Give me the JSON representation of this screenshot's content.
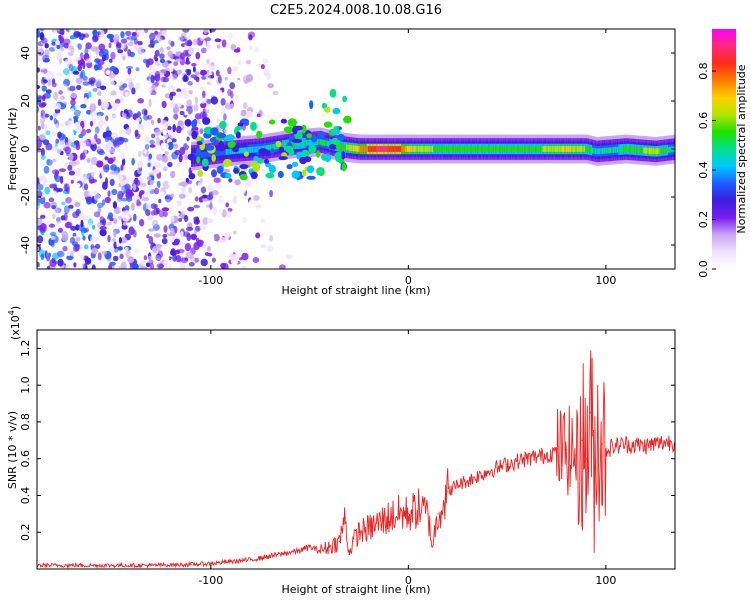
{
  "title": "C2E5.2024.008.10.08.G16",
  "colors": {
    "snr_line": "#ee2222",
    "colormap": [
      "#ffffff",
      "#f0e2ff",
      "#c9a6f2",
      "#7b1cf0",
      "#3a1ee0",
      "#1e5dff",
      "#00c8ff",
      "#00e08c",
      "#22e000",
      "#b4e600",
      "#ffd000",
      "#ff7a00",
      "#ff2a1a",
      "#ff2a7a",
      "#ff00ff"
    ]
  },
  "chart_data": [
    {
      "type": "heatmap",
      "title": "",
      "xlabel": "Height of straight line (km)",
      "ylabel": "Frequency (Hz)",
      "xlim": [
        -188,
        135
      ],
      "ylim": [
        -50,
        50
      ],
      "x_ticks": [
        -100,
        0,
        100
      ],
      "y_ticks": [
        40,
        20,
        0,
        -20,
        -40
      ],
      "x_tick_labels": [
        "-100",
        "0",
        "100"
      ],
      "y_tick_labels": [
        "40",
        "20",
        "0",
        "-20",
        "-40"
      ],
      "colorbar": {
        "label": "Normalized spectral amplitude",
        "range": [
          0.0,
          0.97
        ],
        "ticks": [
          0.0,
          0.2,
          0.4,
          0.6,
          0.8
        ],
        "tick_labels": [
          "0.0",
          "0.2",
          "0.4",
          "0.6",
          "0.8"
        ]
      },
      "ridge": {
        "x": [
          -110,
          -90,
          -75,
          -60,
          -45,
          -35,
          -25,
          -15,
          -5,
          0,
          20,
          40,
          60,
          80,
          90,
          95,
          110,
          125,
          135
        ],
        "center_hz": [
          -3,
          -1,
          0,
          2,
          3,
          1,
          0,
          0,
          0,
          0,
          0,
          0,
          0,
          0,
          0,
          -1,
          0,
          -1,
          0
        ],
        "amplitude": [
          0.35,
          0.4,
          0.45,
          0.55,
          0.5,
          0.55,
          0.75,
          0.92,
          0.85,
          0.7,
          0.55,
          0.6,
          0.55,
          0.7,
          0.6,
          0.45,
          0.55,
          0.65,
          0.45
        ]
      }
    },
    {
      "type": "line",
      "title": "",
      "xlabel": "Height of straight line (km)",
      "ylabel": "SNR (10 * v/v)",
      "y_multiplier_label": "(x10",
      "y_multiplier_exp": "4",
      "y_multiplier_close": ")",
      "xlim": [
        -188,
        135
      ],
      "ylim": [
        0,
        1.3
      ],
      "x_ticks": [
        -100,
        0,
        100
      ],
      "y_ticks": [
        0.2,
        0.4,
        0.6,
        0.8,
        1.0,
        1.2
      ],
      "x_tick_labels": [
        "-100",
        "0",
        "100"
      ],
      "y_tick_labels": [
        "0.2",
        "0.4",
        "0.6",
        "0.8",
        "1.0",
        "1.2"
      ],
      "series": [
        {
          "x": [
            -188,
            -170,
            -150,
            -130,
            -110,
            -100,
            -90,
            -80,
            -70,
            -60,
            -55,
            -50,
            -45,
            -40,
            -35,
            -32,
            -30,
            -28,
            -25,
            -20,
            -15,
            -10,
            -5,
            0,
            5,
            10,
            12,
            15,
            20,
            25,
            30,
            40,
            50,
            60,
            70,
            75,
            80,
            85,
            88,
            90,
            92,
            94,
            96,
            98,
            100,
            105,
            110,
            120,
            130,
            135
          ],
          "values": [
            0.02,
            0.02,
            0.02,
            0.02,
            0.025,
            0.03,
            0.04,
            0.05,
            0.07,
            0.09,
            0.1,
            0.12,
            0.1,
            0.12,
            0.15,
            0.28,
            0.08,
            0.15,
            0.2,
            0.22,
            0.25,
            0.28,
            0.3,
            0.3,
            0.33,
            0.3,
            0.12,
            0.3,
            0.42,
            0.46,
            0.48,
            0.53,
            0.57,
            0.6,
            0.62,
            0.64,
            0.65,
            0.62,
            0.7,
            0.6,
            0.85,
            0.55,
            0.75,
            0.68,
            0.65,
            0.67,
            0.68,
            0.67,
            0.69,
            0.69
          ]
        }
      ]
    }
  ]
}
